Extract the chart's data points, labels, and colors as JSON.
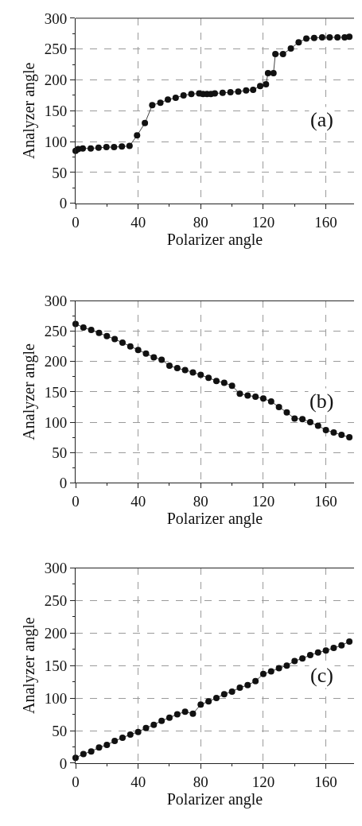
{
  "chart_data": [
    {
      "type": "line",
      "xlabel": "Polarizer angle",
      "ylabel": "Analyzer angle",
      "annotations": [
        "(a)"
      ],
      "marker": "circle",
      "line_style": "solid",
      "grid": true,
      "series": [
        {
          "color": "#111111",
          "x": [
            0,
            1.7,
            4.6,
            9.7,
            14.7,
            19.7,
            24.6,
            29.6,
            34.5,
            39.3,
            44.3,
            49,
            54.2,
            59,
            64,
            69,
            74,
            79,
            81.5,
            84,
            86.5,
            89,
            94,
            99,
            104,
            109,
            113.5,
            118,
            121.7,
            123,
            126.5,
            127.7,
            132.6,
            137.6,
            142.6,
            147.5,
            152.5,
            157.6,
            162.4,
            167.4,
            172,
            175
          ],
          "values": [
            85,
            88,
            89,
            89,
            90,
            91,
            91,
            92,
            93,
            110,
            130,
            159,
            163,
            168,
            171,
            175,
            177,
            178,
            177,
            177,
            177,
            178,
            179,
            180,
            181,
            183,
            184,
            190,
            193,
            211,
            211,
            242,
            242,
            251,
            261,
            267,
            268,
            269,
            269,
            269,
            269,
            270
          ]
        }
      ],
      "xlim": [
        0,
        178
      ],
      "ylim": [
        0,
        300
      ],
      "xticks": [
        0,
        {
          "value": 20,
          "label": null
        },
        40,
        {
          "value": 60,
          "label": null
        },
        80,
        {
          "value": 100,
          "label": null
        },
        120,
        {
          "value": 140,
          "label": null
        },
        160
      ],
      "yticks": [
        0,
        {
          "value": 25,
          "label": null
        },
        50,
        {
          "value": 75,
          "label": null
        },
        100,
        {
          "value": 125,
          "label": null
        },
        150,
        {
          "value": 175,
          "label": null
        },
        200,
        {
          "value": 225,
          "label": null
        },
        250,
        {
          "value": 275,
          "label": null
        },
        300
      ]
    },
    {
      "type": "line",
      "xlabel": "Polarizer angle",
      "ylabel": "Analyzer angle",
      "annotations": [
        "(b)"
      ],
      "marker": "circle",
      "line_style": "solid",
      "grid": true,
      "series": [
        {
          "color": "#111111",
          "x": [
            0,
            5,
            10,
            15,
            20,
            25,
            30,
            35,
            40,
            45,
            50,
            55,
            60,
            65,
            70,
            75,
            80,
            85,
            90,
            95,
            100,
            105,
            110,
            115,
            120,
            125,
            130,
            135,
            140,
            145,
            150,
            155,
            160,
            165,
            170,
            175
          ],
          "values": [
            262,
            256,
            252,
            247,
            242,
            237,
            231,
            225,
            219,
            213,
            207,
            203,
            193,
            189,
            186,
            182,
            178,
            173,
            168,
            165,
            160,
            147,
            144,
            142,
            139,
            134,
            125,
            116,
            106,
            105,
            100,
            94,
            87,
            83,
            79,
            75
          ]
        }
      ],
      "xlim": [
        0,
        178
      ],
      "ylim": [
        0,
        300
      ],
      "xticks": [
        0,
        {
          "value": 20,
          "label": null
        },
        40,
        {
          "value": 60,
          "label": null
        },
        80,
        {
          "value": 100,
          "label": null
        },
        120,
        {
          "value": 140,
          "label": null
        },
        160
      ],
      "yticks": [
        0,
        {
          "value": 25,
          "label": null
        },
        50,
        {
          "value": 75,
          "label": null
        },
        100,
        {
          "value": 125,
          "label": null
        },
        150,
        {
          "value": 175,
          "label": null
        },
        200,
        {
          "value": 225,
          "label": null
        },
        250,
        {
          "value": 275,
          "label": null
        },
        300
      ]
    },
    {
      "type": "line",
      "xlabel": "Polarizer angle",
      "ylabel": "Analyzer angle",
      "annotations": [
        "(c)"
      ],
      "marker": "circle",
      "line_style": "solid",
      "grid": true,
      "series": [
        {
          "color": "#111111",
          "x": [
            0,
            5,
            10,
            15,
            20,
            25,
            30,
            35,
            40,
            45,
            50,
            55,
            60,
            65,
            70,
            75,
            80,
            85,
            90,
            95,
            100,
            105,
            110,
            115,
            120,
            125,
            130,
            135,
            140,
            145,
            150,
            155,
            160,
            165,
            170,
            175
          ],
          "values": [
            8,
            14,
            18,
            24,
            28,
            34,
            39,
            44,
            48,
            54,
            59,
            65,
            70,
            75,
            79,
            76,
            90,
            95,
            100,
            106,
            110,
            116,
            120,
            126,
            137,
            141,
            146,
            150,
            157,
            161,
            166,
            170,
            173,
            177,
            181,
            187
          ]
        }
      ],
      "xlim": [
        0,
        178
      ],
      "ylim": [
        0,
        300
      ],
      "xticks": [
        0,
        {
          "value": 20,
          "label": null
        },
        40,
        {
          "value": 60,
          "label": null
        },
        80,
        {
          "value": 100,
          "label": null
        },
        120,
        {
          "value": 140,
          "label": null
        },
        160
      ],
      "yticks": [
        0,
        {
          "value": 25,
          "label": null
        },
        50,
        {
          "value": 75,
          "label": null
        },
        100,
        {
          "value": 125,
          "label": null
        },
        150,
        {
          "value": 175,
          "label": null
        },
        200,
        {
          "value": 225,
          "label": null
        },
        250,
        {
          "value": 275,
          "label": null
        },
        300
      ]
    }
  ]
}
